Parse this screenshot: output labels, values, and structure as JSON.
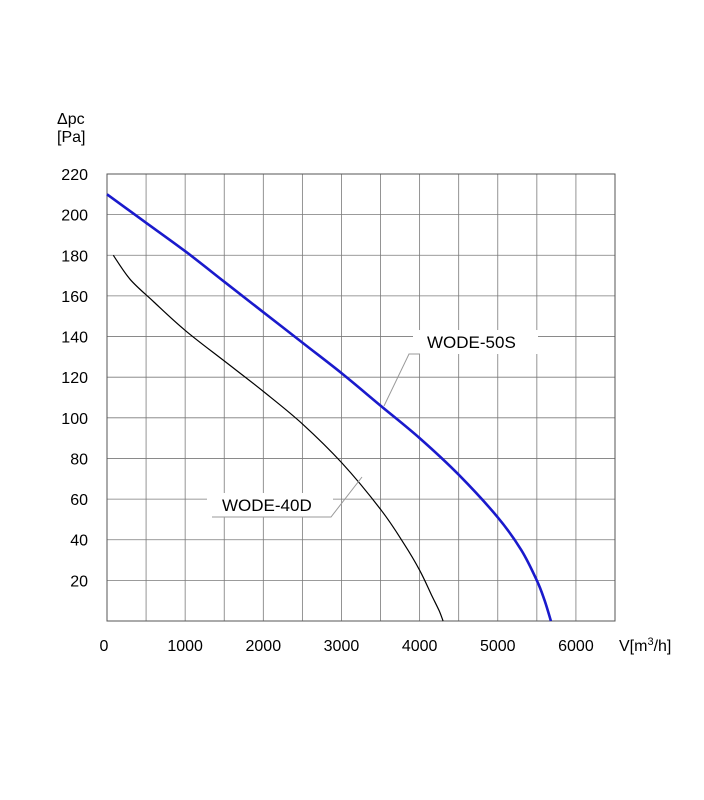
{
  "chart_data": {
    "type": "line",
    "title": "",
    "ylabel_line1": "Δpc",
    "ylabel_line2": "[Pa]",
    "xlabel_prefix": "V[m",
    "xlabel_sup": "3",
    "xlabel_suffix": "/h]",
    "xlim": [
      0,
      6500
    ],
    "ylim": [
      0,
      220
    ],
    "grid": true,
    "x_ticks": [
      0,
      1000,
      2000,
      3000,
      4000,
      5000,
      6000
    ],
    "y_ticks": [
      20,
      40,
      60,
      80,
      100,
      120,
      140,
      160,
      180,
      200,
      220
    ],
    "x_tick_labels": [
      "0",
      "1000",
      "2000",
      "3000",
      "4000",
      "5000",
      "6000"
    ],
    "y_tick_labels": [
      "20",
      "40",
      "60",
      "80",
      "100",
      "120",
      "140",
      "160",
      "180",
      "200",
      "220"
    ],
    "series": [
      {
        "name": "WODE-50S",
        "color": "#1a1acc",
        "x": [
          0,
          500,
          1000,
          1500,
          2000,
          2500,
          3000,
          3500,
          4000,
          4500,
          5000,
          5300,
          5500,
          5600,
          5680
        ],
        "y": [
          210,
          196,
          182,
          167,
          152,
          137,
          122,
          106,
          90,
          72,
          51,
          35,
          20,
          10,
          0
        ]
      },
      {
        "name": "WODE-40D",
        "color": "#000000",
        "x": [
          80,
          300,
          600,
          1000,
          1500,
          2000,
          2500,
          3000,
          3500,
          3800,
          4000,
          4150,
          4250,
          4300
        ],
        "y": [
          180,
          168,
          157,
          143,
          128,
          113,
          97,
          78,
          55,
          38,
          25,
          13,
          5,
          0
        ]
      }
    ],
    "annotations": [
      {
        "text": "WODE-50S",
        "series": "WODE-50S"
      },
      {
        "text": "WODE-40D",
        "series": "WODE-40D"
      }
    ]
  }
}
